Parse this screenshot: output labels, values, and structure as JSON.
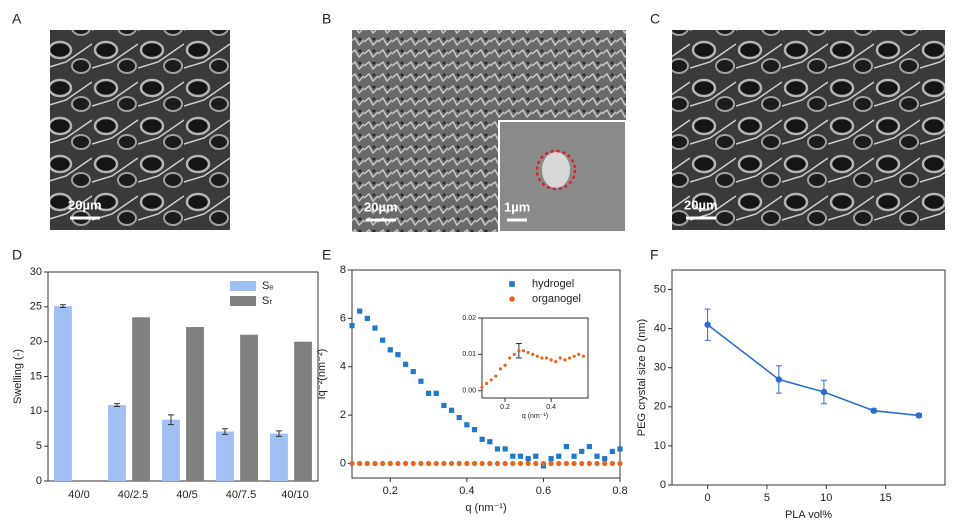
{
  "panels": {
    "labels": [
      "A",
      "B",
      "C",
      "D",
      "E",
      "F"
    ]
  },
  "images": [
    {
      "scale_bar": "20µm"
    },
    {
      "scale_bar": "20µm",
      "inset_scale_bar": "1µm"
    },
    {
      "scale_bar": "20µm"
    }
  ],
  "chart_data": [
    {
      "type": "bar",
      "categories": [
        "40/0",
        "40/2.5",
        "40/5",
        "40/7.5",
        "40/10"
      ],
      "ylabel": "Swelling (-)",
      "ylim": [
        0,
        30
      ],
      "yticks": [
        0,
        5,
        10,
        15,
        20,
        25,
        30
      ],
      "legend": "upper right",
      "series": [
        {
          "name": "Sₑ",
          "color": "#a0bff2",
          "values": [
            25.1,
            10.9,
            8.8,
            7.1,
            6.8
          ],
          "errors": [
            0.2,
            0.2,
            0.7,
            0.4,
            0.4
          ]
        },
        {
          "name": "Sₜ",
          "color": "#808080",
          "values": [
            null,
            23.5,
            22.1,
            21.0,
            20.0
          ]
        }
      ]
    },
    {
      "type": "scatter",
      "xlabel": "q (nm⁻¹)",
      "ylabel": "Iq⁻²(nm⁻²)",
      "legend": "upper right",
      "xlim": [
        0.1,
        0.8
      ],
      "xticks": [
        0.2,
        0.4,
        0.6,
        0.8
      ],
      "ylim": [
        -0.6,
        8
      ],
      "yticks": [
        0,
        2,
        4,
        6,
        8
      ],
      "x": [
        0.1,
        0.12,
        0.14,
        0.16,
        0.18,
        0.2,
        0.22,
        0.24,
        0.26,
        0.28,
        0.3,
        0.32,
        0.34,
        0.36,
        0.38,
        0.4,
        0.42,
        0.44,
        0.46,
        0.48,
        0.5,
        0.52,
        0.54,
        0.56,
        0.58,
        0.6,
        0.62,
        0.64,
        0.66,
        0.68,
        0.7,
        0.72,
        0.74,
        0.76,
        0.78,
        0.8
      ],
      "series": [
        {
          "name": "hydrogel",
          "color": "#1f78c8",
          "marker": "square",
          "values": [
            5.7,
            6.3,
            6.0,
            5.6,
            5.1,
            4.7,
            4.5,
            4.1,
            3.8,
            3.4,
            2.9,
            2.9,
            2.4,
            2.2,
            1.9,
            1.6,
            1.4,
            1.0,
            0.9,
            0.6,
            0.6,
            0.3,
            0.3,
            0.2,
            0.3,
            -0.1,
            0.2,
            0.3,
            0.7,
            0.3,
            0.5,
            0.7,
            0.3,
            0.2,
            0.5,
            0.6
          ]
        },
        {
          "name": "organogel",
          "color": "#e8661c",
          "marker": "circle",
          "values": [
            0,
            0,
            0,
            0,
            0,
            0,
            0,
            0,
            0,
            0,
            0,
            0,
            0,
            0,
            0,
            0,
            0,
            0,
            0,
            0,
            0,
            0,
            0,
            0,
            0,
            0,
            0,
            0,
            0,
            0,
            0,
            0,
            0,
            0,
            0,
            0
          ]
        }
      ]
    },
    {
      "type": "scatter",
      "xlabel": "q (nm⁻¹)",
      "color": "#e8661c",
      "marker": "circle",
      "xlim": [
        0.1,
        0.56
      ],
      "xticks": [
        0.2,
        0.4
      ],
      "ylim": [
        -0.002,
        0.02
      ],
      "yticks": [
        {
          "value": 0,
          "label": "0.00"
        },
        0.01,
        0.02
      ],
      "x": [
        0.1,
        0.12,
        0.14,
        0.16,
        0.18,
        0.2,
        0.22,
        0.24,
        0.26,
        0.28,
        0.3,
        0.32,
        0.34,
        0.36,
        0.38,
        0.4,
        0.42,
        0.44,
        0.46,
        0.48,
        0.5,
        0.52,
        0.54
      ],
      "values": [
        0.001,
        0.002,
        0.003,
        0.004,
        0.006,
        0.007,
        0.009,
        0.01,
        0.011,
        0.011,
        0.0105,
        0.01,
        0.0095,
        0.009,
        0.009,
        0.0085,
        0.008,
        0.009,
        0.0085,
        0.009,
        0.0095,
        0.01,
        0.0095
      ],
      "errors": [
        null,
        null,
        null,
        null,
        null,
        null,
        null,
        null,
        0.002,
        null,
        null,
        null,
        null,
        null,
        null,
        null,
        null,
        null,
        null,
        null,
        null,
        null,
        null
      ]
    },
    {
      "type": "line",
      "xlabel": "PLA vol%",
      "ylabel": "PEG crystal size D (nm)",
      "color": "#2a6fcf",
      "xlim": [
        -3,
        20
      ],
      "xticks": [
        0,
        5,
        10,
        15
      ],
      "ylim": [
        0,
        55
      ],
      "yticks": [
        0,
        10,
        20,
        30,
        40,
        50
      ],
      "x": [
        0,
        6,
        9.8,
        14,
        17.8
      ],
      "values": [
        41,
        27,
        23.8,
        19,
        17.8
      ],
      "errors": [
        4,
        3.5,
        3,
        0.5,
        0.5
      ]
    }
  ]
}
